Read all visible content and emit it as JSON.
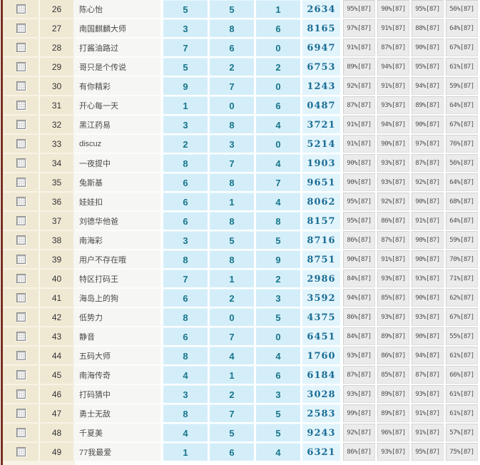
{
  "colors": {
    "left_border": "#772e1f",
    "beige_cell": "#efe9d4",
    "name_cell": "#f6f6f4",
    "blue_cell": "#d4eef9",
    "code_cell": "#e2f4fb",
    "pct_cell": "#ebebeb",
    "stat_text": "#17758a",
    "code_text": "#1a6d96"
  },
  "table": {
    "checkbox_state": "unchecked",
    "rows": [
      {
        "num": "26",
        "name": "陈心怡",
        "v1": "5",
        "v2": "5",
        "v3": "1",
        "code": "2634",
        "p1": "95%[87]",
        "p2": "90%[87]",
        "p3": "95%[87]",
        "p4": "56%[87]"
      },
      {
        "num": "27",
        "name": "南国麒麟大师",
        "v1": "3",
        "v2": "8",
        "v3": "6",
        "code": "8165",
        "p1": "97%[87]",
        "p2": "91%[87]",
        "p3": "88%[87]",
        "p4": "64%[87]"
      },
      {
        "num": "28",
        "name": "打酱油路过",
        "v1": "7",
        "v2": "6",
        "v3": "0",
        "code": "6947",
        "p1": "91%[87]",
        "p2": "87%[87]",
        "p3": "90%[87]",
        "p4": "67%[87]"
      },
      {
        "num": "29",
        "name": "哥只是个传说",
        "v1": "5",
        "v2": "2",
        "v3": "2",
        "code": "6753",
        "p1": "89%[87]",
        "p2": "94%[87]",
        "p3": "95%[87]",
        "p4": "61%[87]"
      },
      {
        "num": "30",
        "name": "有你精彩",
        "v1": "9",
        "v2": "7",
        "v3": "0",
        "code": "1243",
        "p1": "92%[87]",
        "p2": "91%[87]",
        "p3": "94%[87]",
        "p4": "59%[87]"
      },
      {
        "num": "31",
        "name": "开心每一天",
        "v1": "1",
        "v2": "0",
        "v3": "6",
        "code": "0487",
        "p1": "87%[87]",
        "p2": "93%[87]",
        "p3": "89%[87]",
        "p4": "64%[87]"
      },
      {
        "num": "32",
        "name": "黑江药易",
        "v1": "3",
        "v2": "8",
        "v3": "4",
        "code": "3721",
        "p1": "91%[87]",
        "p2": "94%[87]",
        "p3": "90%[87]",
        "p4": "67%[87]"
      },
      {
        "num": "33",
        "name": "discuz",
        "v1": "2",
        "v2": "3",
        "v3": "0",
        "code": "5214",
        "p1": "91%[87]",
        "p2": "90%[87]",
        "p3": "97%[87]",
        "p4": "76%[87]"
      },
      {
        "num": "34",
        "name": "一夜提中",
        "v1": "8",
        "v2": "7",
        "v3": "4",
        "code": "1903",
        "p1": "90%[87]",
        "p2": "93%[87]",
        "p3": "87%[87]",
        "p4": "56%[87]"
      },
      {
        "num": "35",
        "name": "兔斯基",
        "v1": "6",
        "v2": "8",
        "v3": "7",
        "code": "9651",
        "p1": "90%[87]",
        "p2": "93%[87]",
        "p3": "92%[87]",
        "p4": "64%[87]"
      },
      {
        "num": "36",
        "name": "娃娃扣",
        "v1": "6",
        "v2": "1",
        "v3": "4",
        "code": "8062",
        "p1": "95%[87]",
        "p2": "92%[87]",
        "p3": "90%[87]",
        "p4": "68%[87]"
      },
      {
        "num": "37",
        "name": "刘德华他爸",
        "v1": "6",
        "v2": "8",
        "v3": "8",
        "code": "8157",
        "p1": "95%[87]",
        "p2": "86%[87]",
        "p3": "91%[87]",
        "p4": "64%[87]"
      },
      {
        "num": "38",
        "name": "南海彩",
        "v1": "3",
        "v2": "5",
        "v3": "5",
        "code": "8716",
        "p1": "86%[87]",
        "p2": "87%[87]",
        "p3": "90%[87]",
        "p4": "59%[87]"
      },
      {
        "num": "39",
        "name": "用户不存在哦",
        "v1": "8",
        "v2": "8",
        "v3": "9",
        "code": "8751",
        "p1": "90%[87]",
        "p2": "91%[87]",
        "p3": "90%[87]",
        "p4": "70%[87]"
      },
      {
        "num": "40",
        "name": "特区打码王",
        "v1": "7",
        "v2": "1",
        "v3": "2",
        "code": "2986",
        "p1": "84%[87]",
        "p2": "93%[87]",
        "p3": "93%[87]",
        "p4": "71%[87]"
      },
      {
        "num": "41",
        "name": "海岛上的狗",
        "v1": "6",
        "v2": "2",
        "v3": "3",
        "code": "3592",
        "p1": "94%[87]",
        "p2": "85%[87]",
        "p3": "90%[87]",
        "p4": "62%[87]"
      },
      {
        "num": "42",
        "name": "低势力",
        "v1": "8",
        "v2": "0",
        "v3": "5",
        "code": "4375",
        "p1": "86%[87]",
        "p2": "93%[87]",
        "p3": "93%[87]",
        "p4": "67%[87]"
      },
      {
        "num": "43",
        "name": "静音",
        "v1": "6",
        "v2": "7",
        "v3": "0",
        "code": "6451",
        "p1": "84%[87]",
        "p2": "89%[87]",
        "p3": "90%[87]",
        "p4": "55%[87]"
      },
      {
        "num": "44",
        "name": "五码大师",
        "v1": "8",
        "v2": "4",
        "v3": "4",
        "code": "1760",
        "p1": "93%[87]",
        "p2": "86%[87]",
        "p3": "94%[87]",
        "p4": "61%[87]"
      },
      {
        "num": "45",
        "name": "南海传奇",
        "v1": "4",
        "v2": "1",
        "v3": "6",
        "code": "6184",
        "p1": "87%[87]",
        "p2": "85%[87]",
        "p3": "87%[87]",
        "p4": "66%[87]"
      },
      {
        "num": "46",
        "name": "打码猜中",
        "v1": "3",
        "v2": "2",
        "v3": "3",
        "code": "3028",
        "p1": "93%[87]",
        "p2": "89%[87]",
        "p3": "93%[87]",
        "p4": "61%[87]"
      },
      {
        "num": "47",
        "name": "勇士无敌",
        "v1": "8",
        "v2": "7",
        "v3": "5",
        "code": "2583",
        "p1": "99%[87]",
        "p2": "89%[87]",
        "p3": "91%[87]",
        "p4": "61%[87]"
      },
      {
        "num": "48",
        "name": "千夏美",
        "v1": "4",
        "v2": "5",
        "v3": "5",
        "code": "9243",
        "p1": "92%[87]",
        "p2": "96%[87]",
        "p3": "91%[87]",
        "p4": "57%[87]"
      },
      {
        "num": "49",
        "name": "77我最爱",
        "v1": "1",
        "v2": "6",
        "v3": "4",
        "code": "6321",
        "p1": "86%[87]",
        "p2": "93%[87]",
        "p3": "95%[87]",
        "p4": "75%[87]"
      }
    ]
  }
}
